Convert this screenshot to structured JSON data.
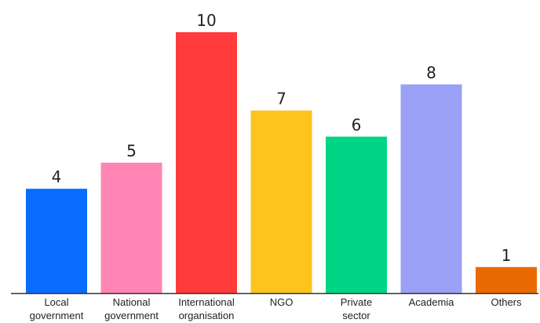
{
  "chart_data": {
    "type": "bar",
    "title": "",
    "xlabel": "",
    "ylabel": "",
    "categories": [
      [
        "Local",
        "government"
      ],
      [
        "National",
        "government"
      ],
      [
        "International",
        "organisation"
      ],
      [
        "NGO"
      ],
      [
        "Private",
        "sector"
      ],
      [
        "Academia"
      ],
      [
        "Others"
      ]
    ],
    "values": [
      4,
      5,
      10,
      7,
      6,
      8,
      1
    ],
    "colors": [
      "#0a6cff",
      "#ff85b4",
      "#ff3b3b",
      "#fdc41f",
      "#00d586",
      "#9aa0f5",
      "#e96a00"
    ],
    "ylim": [
      0,
      10
    ],
    "grid": false,
    "legend": "none",
    "baseline_color": "#333333"
  }
}
